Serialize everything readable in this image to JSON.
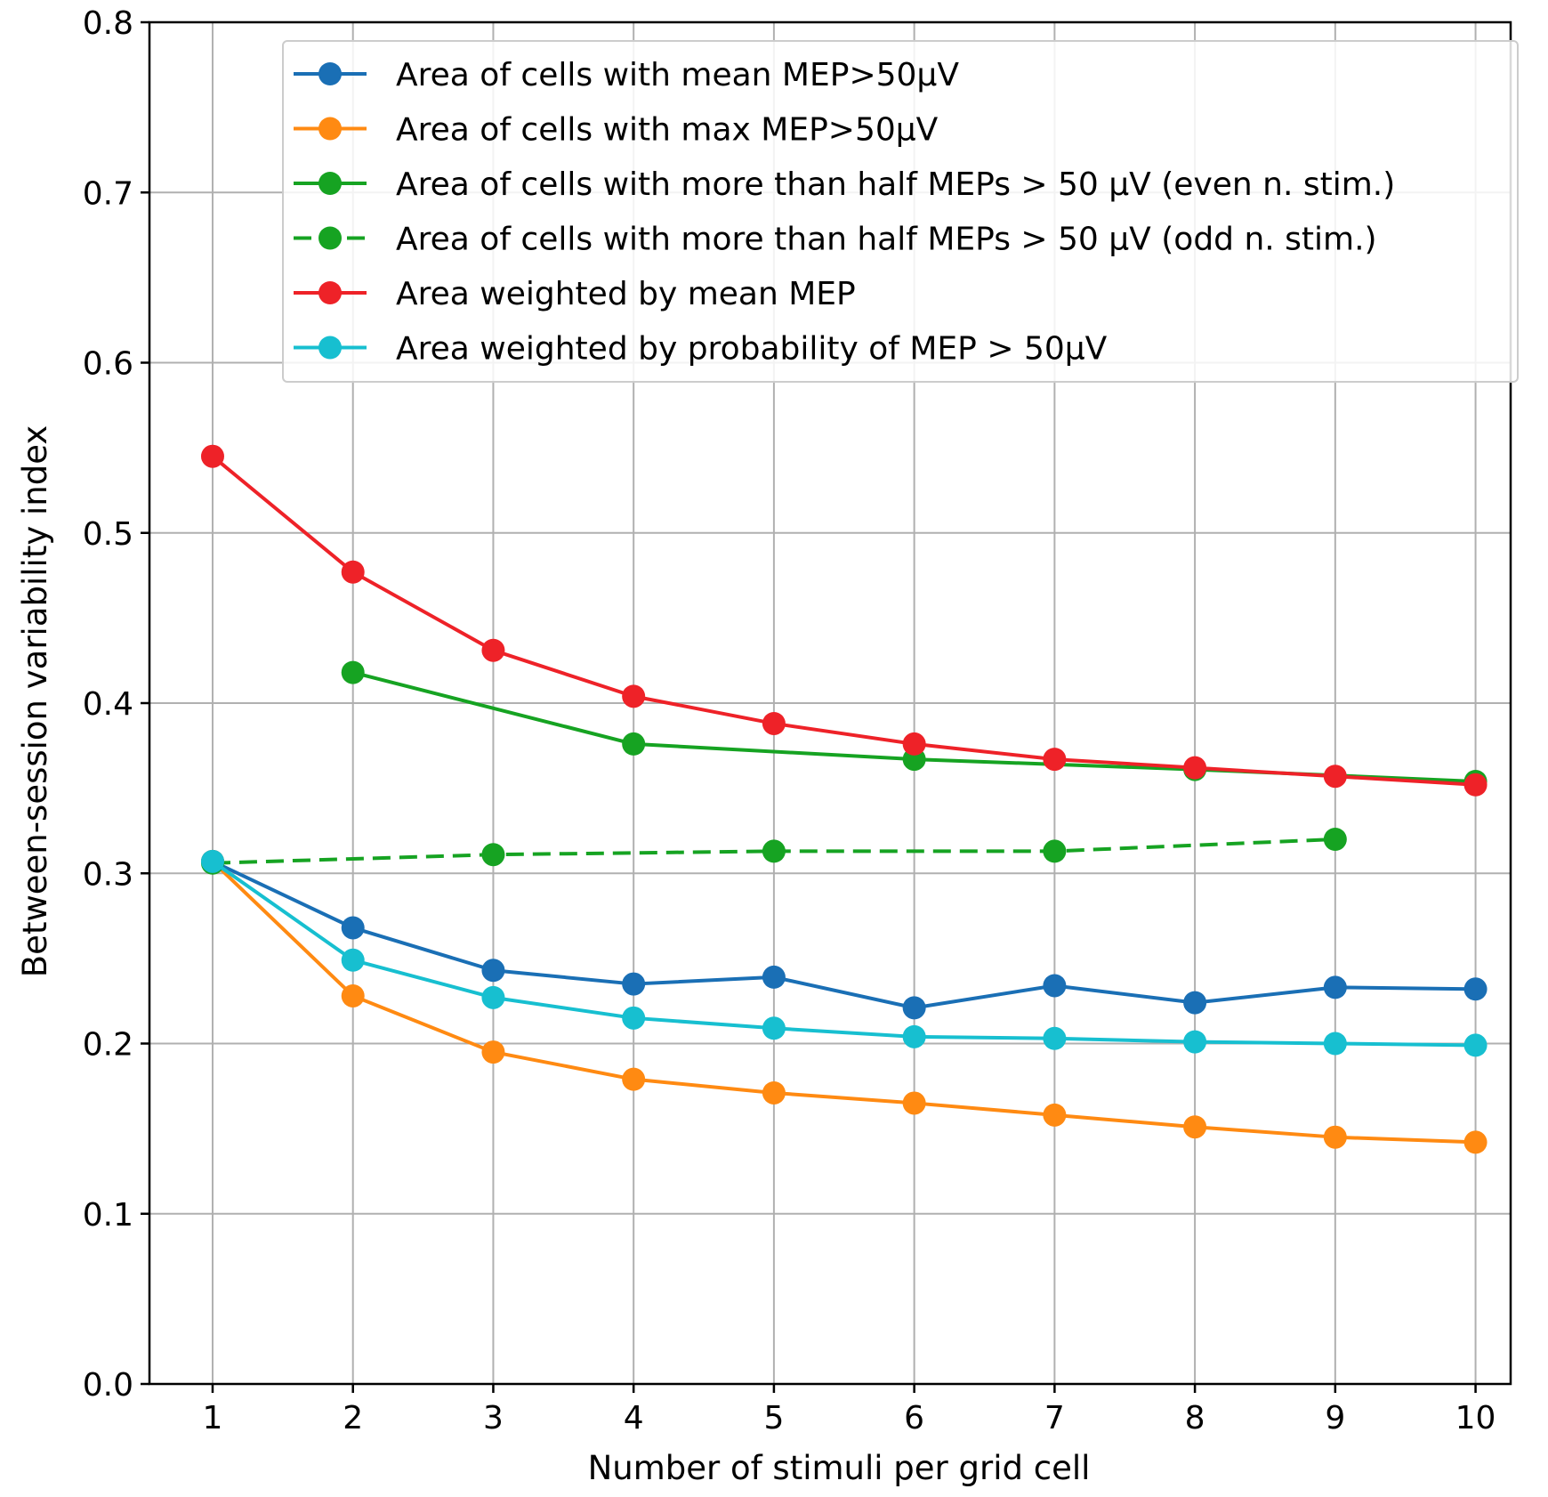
{
  "chart_data": {
    "type": "line",
    "title": "",
    "xlabel": "Number of stimuli per grid cell",
    "ylabel": "Between-session variability index",
    "xlim": [
      0.55,
      10.25
    ],
    "ylim": [
      0.0,
      0.8
    ],
    "xticks": [
      "1",
      "2",
      "3",
      "4",
      "5",
      "6",
      "7",
      "8",
      "9",
      "10"
    ],
    "yticks": [
      "0.0",
      "0.1",
      "0.2",
      "0.3",
      "0.4",
      "0.5",
      "0.6",
      "0.7",
      "0.8"
    ],
    "grid": true,
    "legend_position": "top-right",
    "series": [
      {
        "name": "Area of cells with mean MEP>50μV",
        "color": "#1a6fb5",
        "dashed": false,
        "x": [
          1,
          2,
          3,
          4,
          5,
          6,
          7,
          8,
          9,
          10
        ],
        "values": [
          0.307,
          0.268,
          0.243,
          0.235,
          0.239,
          0.221,
          0.234,
          0.224,
          0.233,
          0.232
        ]
      },
      {
        "name": "Area of cells with max MEP>50μV",
        "color": "#ff8a12",
        "dashed": false,
        "x": [
          1,
          2,
          3,
          4,
          5,
          6,
          7,
          8,
          9,
          10
        ],
        "values": [
          0.307,
          0.228,
          0.195,
          0.179,
          0.171,
          0.165,
          0.158,
          0.151,
          0.145,
          0.142
        ]
      },
      {
        "name": "Area of cells with more than half MEPs > 50 μV (even n. stim.)",
        "color": "#16a322",
        "dashed": false,
        "x": [
          2,
          4,
          6,
          8,
          10
        ],
        "values": [
          0.418,
          0.376,
          0.367,
          0.361,
          0.354
        ]
      },
      {
        "name": "Area of cells with more than half MEPs > 50 μV (odd n. stim.)",
        "color": "#16a322",
        "dashed": true,
        "x": [
          1,
          3,
          5,
          7,
          9
        ],
        "values": [
          0.306,
          0.311,
          0.313,
          0.313,
          0.32
        ]
      },
      {
        "name": "Area weighted by mean MEP",
        "color": "#ee2228",
        "dashed": false,
        "x": [
          1,
          2,
          3,
          4,
          5,
          6,
          7,
          8,
          9,
          10
        ],
        "values": [
          0.545,
          0.477,
          0.431,
          0.404,
          0.388,
          0.376,
          0.367,
          0.362,
          0.357,
          0.352
        ]
      },
      {
        "name": "Area weighted by probability of MEP > 50μV",
        "color": "#17bfd0",
        "dashed": false,
        "x": [
          1,
          2,
          3,
          4,
          5,
          6,
          7,
          8,
          9,
          10
        ],
        "values": [
          0.307,
          0.249,
          0.227,
          0.215,
          0.209,
          0.204,
          0.203,
          0.201,
          0.2,
          0.199
        ]
      }
    ]
  }
}
